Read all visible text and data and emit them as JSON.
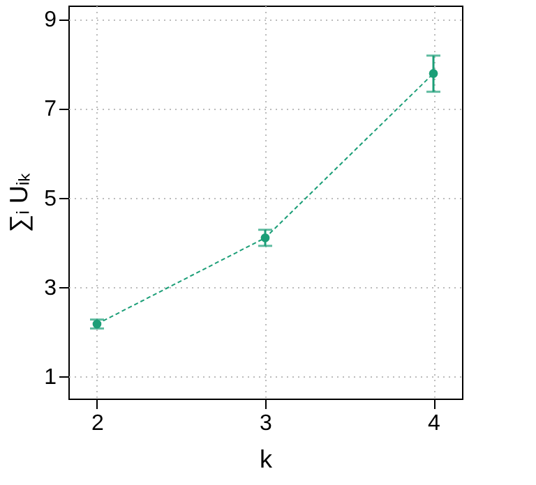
{
  "chart_data": {
    "type": "line",
    "xlabel": "k",
    "ylabel": "∑ᵢ Uᵢₖ",
    "x": [
      2,
      3,
      4
    ],
    "series": [
      {
        "color": "#1b9e77",
        "values": [
          2.17,
          4.1,
          7.78
        ],
        "errors": [
          0.1,
          0.18,
          [
            7.37,
            8.18
          ]
        ]
      }
    ],
    "xlim": [
      1.83,
      4.17
    ],
    "xticks": [
      2,
      3,
      4
    ],
    "ylim": [
      0.5,
      9.3
    ],
    "yticks": [
      1,
      3,
      5,
      7,
      9
    ],
    "grid": true,
    "marker": "circle",
    "line_style": "dashed"
  }
}
